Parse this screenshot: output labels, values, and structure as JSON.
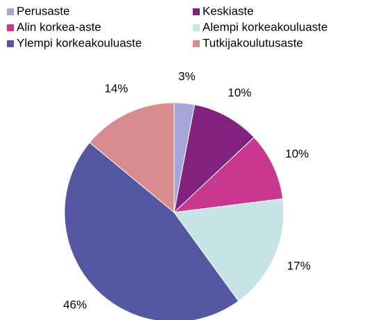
{
  "chart_data": {
    "type": "pie",
    "categories": [
      "Perusaste",
      "Keskiaste",
      "Alin korkea-aste",
      "Alempi korkeakouluaste",
      "Ylempi korkeakouluaste",
      "Tutkijakoulutusaste"
    ],
    "values": [
      3,
      10,
      10,
      17,
      46,
      14
    ],
    "value_labels": [
      "3%",
      "10%",
      "10%",
      "17%",
      "46%",
      "14%"
    ],
    "colors": [
      "#a5a5d9",
      "#83217f",
      "#c9388f",
      "#c6e4e5",
      "#5358a0",
      "#d98c8e"
    ]
  }
}
